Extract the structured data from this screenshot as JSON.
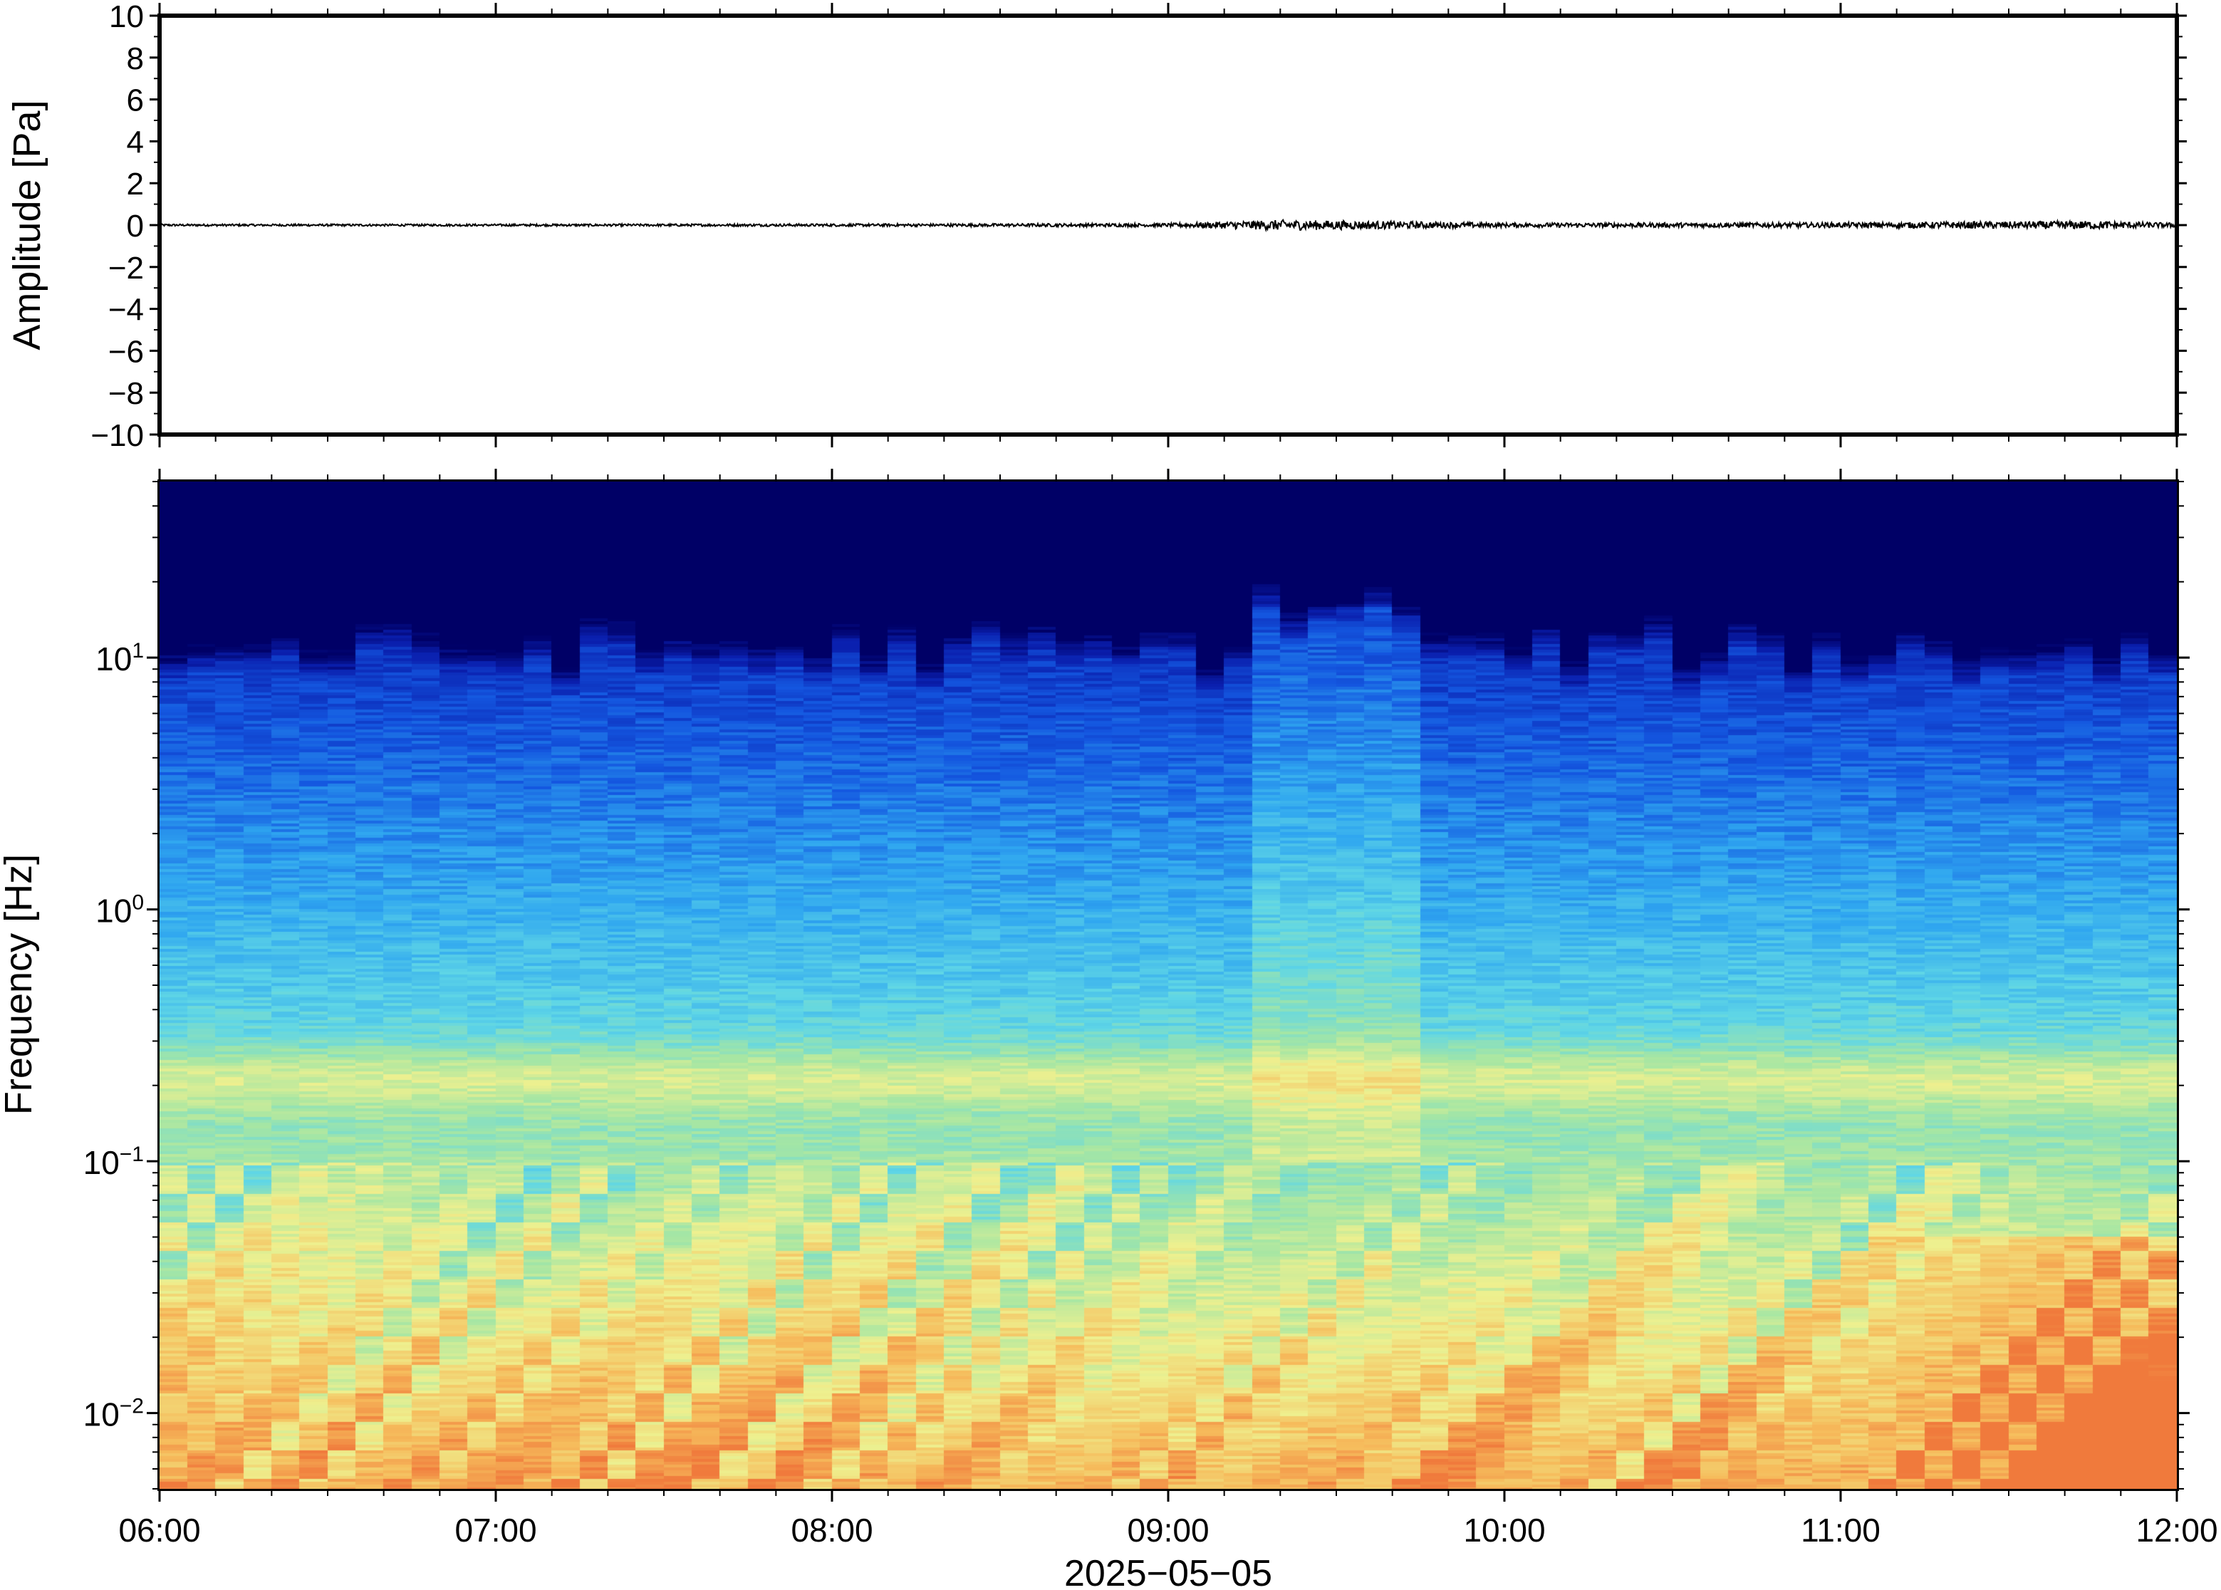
{
  "chart_data": [
    {
      "type": "line",
      "panel": "waveform",
      "ylabel": "Amplitude [Pa]",
      "ylim": [
        -10,
        10
      ],
      "yticks": [
        10,
        8,
        6,
        4,
        2,
        0,
        -2,
        -4,
        -6,
        -8,
        -10
      ],
      "ytick_labels": [
        "10",
        "8",
        "6",
        "4",
        "2",
        "0",
        "−2",
        "−4",
        "−6",
        "−8",
        "−10"
      ],
      "xlim": [
        "2025-05-05T06:00",
        "2025-05-05T12:00"
      ],
      "series": [
        {
          "color": "#000000",
          "x": [
            "2025-05-05T06:00",
            "2025-05-05T07:00",
            "2025-05-05T08:00",
            "2025-05-05T09:00",
            "2025-05-05T09:20",
            "2025-05-05T09:35",
            "2025-05-05T10:00",
            "2025-05-05T11:00",
            "2025-05-05T11:45",
            "2025-05-05T12:00"
          ],
          "peak_amplitude": [
            0.05,
            0.05,
            0.06,
            0.08,
            0.25,
            0.2,
            0.1,
            0.12,
            0.2,
            0.1
          ]
        }
      ],
      "grid": false
    },
    {
      "type": "heatmap",
      "panel": "spectrogram",
      "ylabel": "Frequency [Hz]",
      "yscale": "log",
      "ylim": [
        0.005,
        50
      ],
      "ytick_labels": [
        {
          "base": "10",
          "exp": "1"
        },
        {
          "base": "10",
          "exp": "0"
        },
        {
          "base": "10",
          "exp": "−1"
        },
        {
          "base": "10",
          "exp": "−2"
        }
      ],
      "xlim": [
        "2025-05-05T06:00",
        "2025-05-05T12:00"
      ],
      "x_tick_labels": [
        "06:00",
        "07:00",
        "08:00",
        "09:00",
        "10:00",
        "11:00",
        "12:00"
      ],
      "xlabel": "2025−05−05",
      "colormap": [
        "#000066",
        "#0a1fae",
        "#1457e0",
        "#2fa6f0",
        "#5fd6e6",
        "#a5e6a4",
        "#eef08f",
        "#f6bc5c",
        "#f07a3c"
      ],
      "features": {
        "microbarom_band_hz": [
          0.15,
          0.3
        ],
        "elevated_low_frequency_window": [
          "2025-05-05T11:00",
          "2025-05-05T12:00"
        ],
        "broadband_burst_window": [
          "2025-05-05T09:15",
          "2025-05-05T09:45"
        ]
      },
      "grid": false
    }
  ]
}
